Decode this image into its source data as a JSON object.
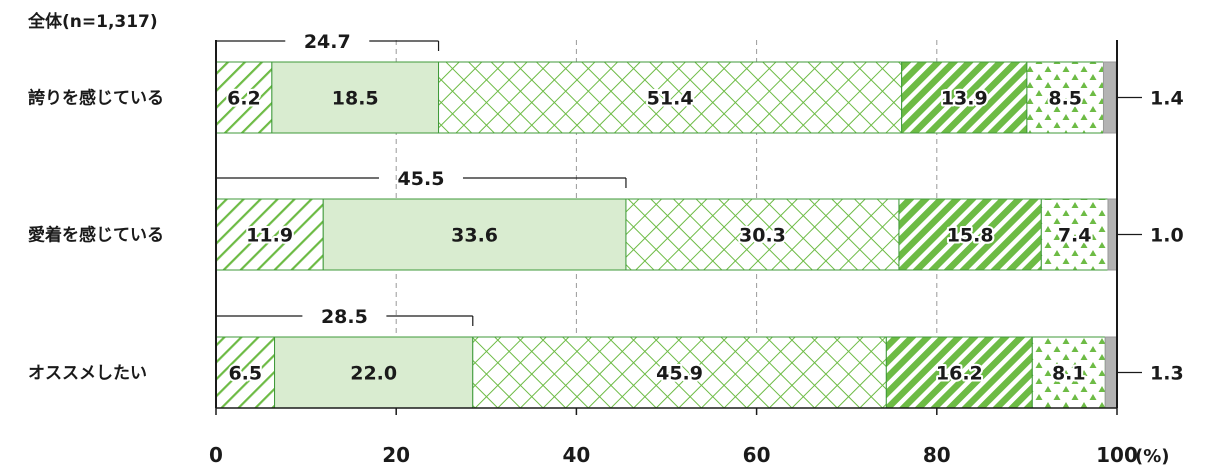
{
  "chart_data": {
    "type": "bar",
    "orientation": "horizontal",
    "stacked": true,
    "subtitle": "全体(n=1,317)",
    "categories": [
      "誇りを感じている",
      "愛着を感じている",
      "オススメしたい"
    ],
    "series": [
      {
        "values": [
          6.2,
          11.9,
          6.5
        ],
        "color": "#6dbb45",
        "pattern": "diag-light"
      },
      {
        "values": [
          18.5,
          33.6,
          22.0
        ],
        "color": "#d9ecd0",
        "pattern": "solid"
      },
      {
        "values": [
          51.4,
          30.3,
          45.9
        ],
        "color": "#6dbb45",
        "pattern": "crosshatch"
      },
      {
        "values": [
          13.9,
          15.8,
          16.2
        ],
        "color": "#6dbb45",
        "pattern": "diag-bold"
      },
      {
        "values": [
          8.5,
          7.4,
          8.1
        ],
        "color": "#6dbb45",
        "pattern": "triangles"
      },
      {
        "values": [
          1.4,
          1.0,
          1.3
        ],
        "color": "#b3b3b3",
        "pattern": "solid"
      }
    ],
    "value_labels": [
      [
        "6.2",
        "18.5",
        "51.4",
        "13.9",
        "8.5",
        "1.4"
      ],
      [
        "11.9",
        "33.6",
        "30.3",
        "15.8",
        "7.4",
        "1.0"
      ],
      [
        "6.5",
        "22.0",
        "45.9",
        "16.2",
        "8.1",
        "1.3"
      ]
    ],
    "bracket_totals": [
      24.7,
      45.5,
      28.5
    ],
    "bracket_labels": [
      "24.7",
      "45.5",
      "28.5"
    ],
    "xlim": [
      0,
      100
    ],
    "xticks": [
      0,
      20,
      40,
      60,
      80,
      100
    ],
    "xtick_labels": [
      "0",
      "20",
      "40",
      "60",
      "80",
      "100"
    ],
    "x_unit": "(%)",
    "grid": "vertical-dashed",
    "legend": "none"
  }
}
